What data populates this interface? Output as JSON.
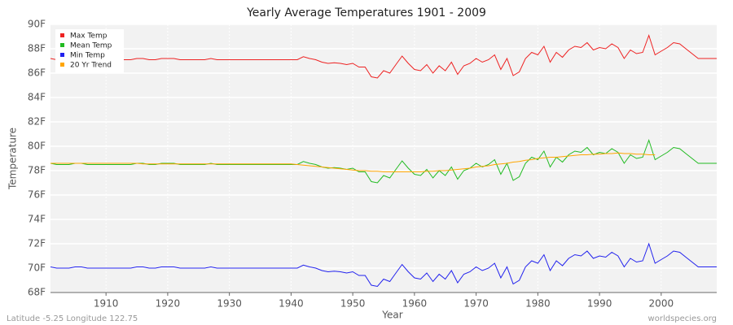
{
  "chart_data": {
    "type": "line",
    "title": "Yearly Average Temperatures 1901 - 2009",
    "x_label": "Year",
    "y_label": "Temperature",
    "footer_left": "Latitude -5.25 Longitude 122.75",
    "footer_right": "worldspecies.org",
    "legend": "top-left",
    "grid": true,
    "xlim": [
      1901,
      2009
    ],
    "xticks": [
      1910,
      1920,
      1930,
      1940,
      1950,
      1960,
      1970,
      1980,
      1990,
      2000
    ],
    "ylim": [
      68,
      90
    ],
    "yticks": [
      {
        "value": 68,
        "label": "68F"
      },
      {
        "value": 70,
        "label": "70F"
      },
      {
        "value": 72,
        "label": "72F"
      },
      {
        "value": 74,
        "label": "74F"
      },
      {
        "value": 76,
        "label": "76F"
      },
      {
        "value": 78,
        "label": "78F"
      },
      {
        "value": 80,
        "label": "80F"
      },
      {
        "value": 82,
        "label": "82F"
      },
      {
        "value": 84,
        "label": "84F"
      },
      {
        "value": 86,
        "label": "86F"
      },
      {
        "value": 88,
        "label": "88F"
      },
      {
        "value": 90,
        "label": "90F"
      }
    ],
    "x": [
      1901,
      1902,
      1903,
      1904,
      1905,
      1906,
      1907,
      1908,
      1909,
      1910,
      1911,
      1912,
      1913,
      1914,
      1915,
      1916,
      1917,
      1918,
      1919,
      1920,
      1921,
      1922,
      1923,
      1924,
      1925,
      1926,
      1927,
      1928,
      1929,
      1930,
      1931,
      1932,
      1933,
      1934,
      1935,
      1936,
      1937,
      1938,
      1939,
      1940,
      1941,
      1942,
      1943,
      1944,
      1945,
      1946,
      1947,
      1948,
      1949,
      1950,
      1951,
      1952,
      1953,
      1954,
      1955,
      1956,
      1957,
      1958,
      1959,
      1960,
      1961,
      1962,
      1963,
      1964,
      1965,
      1966,
      1967,
      1968,
      1969,
      1970,
      1971,
      1972,
      1973,
      1974,
      1975,
      1976,
      1977,
      1978,
      1979,
      1980,
      1981,
      1982,
      1983,
      1984,
      1985,
      1986,
      1987,
      1988,
      1989,
      1990,
      1991,
      1992,
      1993,
      1994,
      1995,
      1996,
      1997,
      1998,
      1999,
      2000,
      2001,
      2002,
      2003,
      2004,
      2005,
      2006,
      2007,
      2008,
      2009
    ],
    "series": [
      {
        "name": "Max Temp",
        "color": "#ee2222",
        "values": [
          87.2,
          87.1,
          87.1,
          87.1,
          87.2,
          87.2,
          87.1,
          87.1,
          87.1,
          87.1,
          87.1,
          87.1,
          87.1,
          87.1,
          87.2,
          87.2,
          87.1,
          87.1,
          87.2,
          87.2,
          87.2,
          87.1,
          87.1,
          87.1,
          87.1,
          87.1,
          87.2,
          87.1,
          87.1,
          87.1,
          87.1,
          87.1,
          87.1,
          87.1,
          87.1,
          87.1,
          87.1,
          87.1,
          87.1,
          87.1,
          87.1,
          87.35,
          87.2,
          87.1,
          86.9,
          86.8,
          86.85,
          86.8,
          86.7,
          86.8,
          86.5,
          86.5,
          85.7,
          85.6,
          86.2,
          86.0,
          86.7,
          87.4,
          86.8,
          86.3,
          86.2,
          86.7,
          86.0,
          86.6,
          86.2,
          86.9,
          85.9,
          86.6,
          86.8,
          87.2,
          86.9,
          87.1,
          87.5,
          86.3,
          87.2,
          85.8,
          86.1,
          87.2,
          87.7,
          87.5,
          88.2,
          86.9,
          87.7,
          87.3,
          87.9,
          88.2,
          88.1,
          88.5,
          87.9,
          88.1,
          88.0,
          88.4,
          88.1,
          87.2,
          87.9,
          87.6,
          87.7,
          89.1,
          87.5,
          87.8,
          88.1,
          88.5,
          88.4,
          88.0,
          87.6,
          87.2,
          87.2,
          87.2,
          87.2
        ]
      },
      {
        "name": "Mean Temp",
        "color": "#22bb22",
        "values": [
          78.6,
          78.5,
          78.5,
          78.5,
          78.6,
          78.6,
          78.5,
          78.5,
          78.5,
          78.5,
          78.5,
          78.5,
          78.5,
          78.5,
          78.6,
          78.6,
          78.5,
          78.5,
          78.6,
          78.6,
          78.6,
          78.5,
          78.5,
          78.5,
          78.5,
          78.5,
          78.6,
          78.5,
          78.5,
          78.5,
          78.5,
          78.5,
          78.5,
          78.5,
          78.5,
          78.5,
          78.5,
          78.5,
          78.5,
          78.5,
          78.5,
          78.75,
          78.6,
          78.5,
          78.3,
          78.2,
          78.25,
          78.2,
          78.1,
          78.2,
          77.9,
          77.9,
          77.1,
          77.0,
          77.6,
          77.4,
          78.1,
          78.8,
          78.2,
          77.7,
          77.6,
          78.1,
          77.4,
          78.0,
          77.6,
          78.3,
          77.3,
          78.0,
          78.2,
          78.6,
          78.3,
          78.5,
          78.9,
          77.7,
          78.6,
          77.2,
          77.5,
          78.6,
          79.1,
          78.9,
          79.6,
          78.3,
          79.1,
          78.7,
          79.3,
          79.6,
          79.5,
          79.9,
          79.3,
          79.5,
          79.4,
          79.8,
          79.5,
          78.6,
          79.3,
          79.0,
          79.1,
          80.5,
          78.9,
          79.2,
          79.5,
          79.9,
          79.8,
          79.4,
          79.0,
          78.6,
          78.6,
          78.6,
          78.6
        ]
      },
      {
        "name": "Min Temp",
        "color": "#2222ee",
        "values": [
          70.1,
          70.0,
          70.0,
          70.0,
          70.1,
          70.1,
          70.0,
          70.0,
          70.0,
          70.0,
          70.0,
          70.0,
          70.0,
          70.0,
          70.1,
          70.1,
          70.0,
          70.0,
          70.1,
          70.1,
          70.1,
          70.0,
          70.0,
          70.0,
          70.0,
          70.0,
          70.1,
          70.0,
          70.0,
          70.0,
          70.0,
          70.0,
          70.0,
          70.0,
          70.0,
          70.0,
          70.0,
          70.0,
          70.0,
          70.0,
          70.0,
          70.25,
          70.1,
          70.0,
          69.8,
          69.7,
          69.75,
          69.7,
          69.6,
          69.7,
          69.4,
          69.4,
          68.6,
          68.5,
          69.1,
          68.9,
          69.6,
          70.3,
          69.7,
          69.2,
          69.1,
          69.6,
          68.9,
          69.5,
          69.1,
          69.8,
          68.8,
          69.5,
          69.7,
          70.1,
          69.8,
          70.0,
          70.4,
          69.2,
          70.1,
          68.7,
          69.0,
          70.1,
          70.6,
          70.4,
          71.1,
          69.8,
          70.6,
          70.2,
          70.8,
          71.1,
          71.0,
          71.4,
          70.8,
          71.0,
          70.9,
          71.3,
          71.0,
          70.1,
          70.8,
          70.5,
          70.6,
          72.0,
          70.4,
          70.7,
          71.0,
          71.4,
          71.3,
          70.9,
          70.5,
          70.1,
          70.1,
          70.1,
          70.1
        ]
      },
      {
        "name": "20 Yr Trend",
        "color": "#ffa500",
        "values": [
          78.6,
          78.6,
          78.6,
          78.6,
          78.6,
          78.6,
          78.6,
          78.6,
          78.6,
          78.6,
          78.6,
          78.6,
          78.6,
          78.6,
          78.6,
          78.55,
          78.55,
          78.55,
          78.55,
          78.55,
          78.55,
          78.55,
          78.55,
          78.55,
          78.55,
          78.55,
          78.55,
          78.55,
          78.55,
          78.55,
          78.55,
          78.55,
          78.55,
          78.55,
          78.55,
          78.55,
          78.55,
          78.55,
          78.55,
          78.55,
          78.5,
          78.45,
          78.4,
          78.35,
          78.3,
          78.25,
          78.2,
          78.15,
          78.1,
          78.05,
          78.0,
          78.0,
          77.95,
          77.95,
          77.9,
          77.9,
          77.9,
          77.9,
          77.9,
          77.9,
          77.9,
          77.95,
          77.95,
          78.0,
          78.0,
          78.05,
          78.1,
          78.15,
          78.2,
          78.3,
          78.35,
          78.4,
          78.5,
          78.55,
          78.6,
          78.7,
          78.75,
          78.85,
          78.9,
          79.0,
          79.05,
          79.1,
          79.1,
          79.15,
          79.2,
          79.25,
          79.3,
          79.3,
          79.35,
          79.35,
          79.4,
          79.4,
          79.45,
          79.4,
          79.4,
          79.35,
          79.35,
          79.3,
          79.3,
          null,
          null,
          null,
          null,
          null,
          null,
          null,
          null,
          null,
          null
        ]
      }
    ]
  }
}
